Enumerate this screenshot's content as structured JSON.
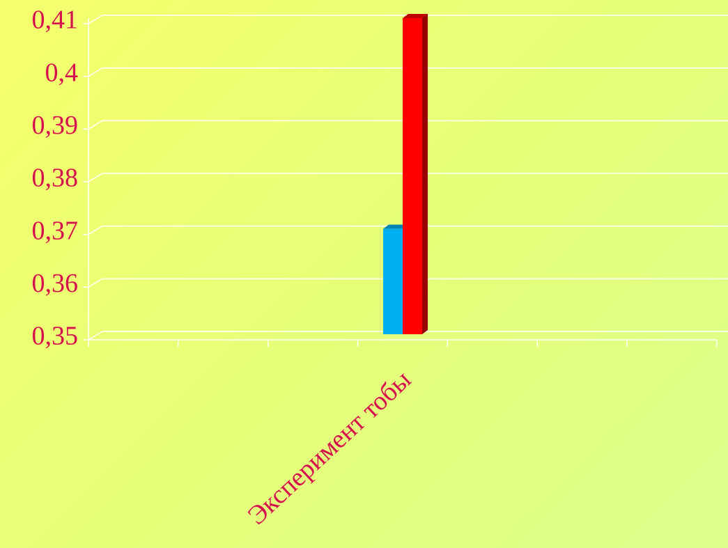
{
  "chart_data": {
    "type": "bar3d",
    "categories": [
      null,
      null,
      null,
      "Эксперимент тобы",
      null,
      null,
      null
    ],
    "series": [
      {
        "color": "#00b0f0",
        "values": [
          null,
          null,
          null,
          0.37,
          null,
          null,
          null
        ]
      },
      {
        "color": "#ff0000",
        "values": [
          null,
          null,
          null,
          0.41,
          null,
          null,
          null
        ]
      }
    ],
    "ylim": [
      0.35,
      0.41
    ],
    "yticks": [
      {
        "value": 0.35,
        "label": "0,35"
      },
      {
        "value": 0.36,
        "label": "0,36"
      },
      {
        "value": 0.37,
        "label": "0,37"
      },
      {
        "value": 0.38,
        "label": "0,38"
      },
      {
        "value": 0.39,
        "label": "0,39"
      },
      {
        "value": 0.4,
        "label": "0,4"
      },
      {
        "value": 0.41,
        "label": "0,41"
      }
    ],
    "grid": true
  }
}
